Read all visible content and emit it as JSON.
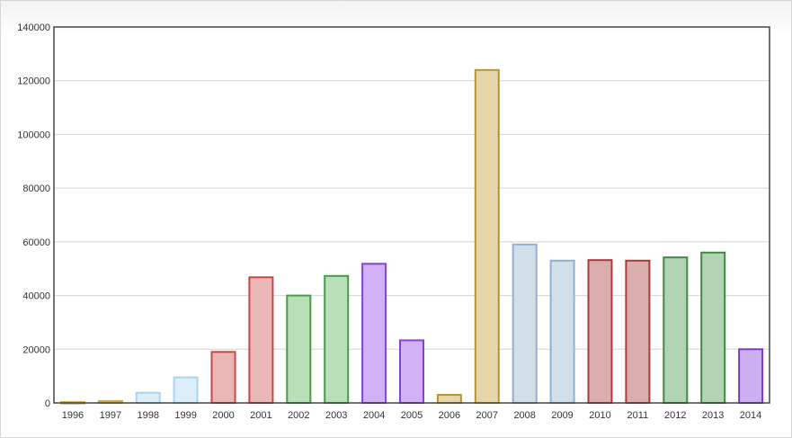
{
  "chart_data": {
    "type": "bar",
    "categories": [
      "1996",
      "1997",
      "1998",
      "1999",
      "2000",
      "2001",
      "2002",
      "2003",
      "2004",
      "2005",
      "2006",
      "2007",
      "2008",
      "2009",
      "2010",
      "2011",
      "2012",
      "2013",
      "2014"
    ],
    "values": [
      300,
      700,
      3800,
      9500,
      19000,
      46800,
      40000,
      47300,
      51800,
      23300,
      3000,
      124000,
      59000,
      53000,
      53200,
      53000,
      54200,
      56000,
      20000
    ],
    "title": "",
    "xlabel": "",
    "ylabel": "",
    "ylim": [
      0,
      140000
    ],
    "yticks": [
      "0",
      "20000",
      "40000",
      "60000",
      "80000",
      "100000",
      "120000",
      "140000"
    ],
    "grid": true,
    "legend": "none",
    "bar_colors": [
      {
        "fill": "#e8d5a6",
        "stroke": "#c9a73a"
      },
      {
        "fill": "#e8d5a6",
        "stroke": "#c9a73a"
      },
      {
        "fill": "#dbeefa",
        "stroke": "#a9d3ef"
      },
      {
        "fill": "#dbeefa",
        "stroke": "#a9d3ef"
      },
      {
        "fill": "#ebb6b6",
        "stroke": "#c94646"
      },
      {
        "fill": "#ebb6b6",
        "stroke": "#c94646"
      },
      {
        "fill": "#b8dfb8",
        "stroke": "#4a9a4a"
      },
      {
        "fill": "#b8dfb8",
        "stroke": "#4a9a4a"
      },
      {
        "fill": "#d2b0f5",
        "stroke": "#8a3fd6"
      },
      {
        "fill": "#d2b0f5",
        "stroke": "#8a3fd6"
      },
      {
        "fill": "#e6d5a8",
        "stroke": "#b3982f"
      },
      {
        "fill": "#e6d5a8",
        "stroke": "#b3982f"
      },
      {
        "fill": "#d0dfea",
        "stroke": "#8fb1cf"
      },
      {
        "fill": "#d0dfea",
        "stroke": "#8fb1cf"
      },
      {
        "fill": "#dbaeae",
        "stroke": "#a83a3a"
      },
      {
        "fill": "#dbaeae",
        "stroke": "#a83a3a"
      },
      {
        "fill": "#b3d4b3",
        "stroke": "#3e8a3e"
      },
      {
        "fill": "#b3d4b3",
        "stroke": "#3e8a3e"
      },
      {
        "fill": "#cdaef0",
        "stroke": "#7a3cc4"
      }
    ]
  }
}
